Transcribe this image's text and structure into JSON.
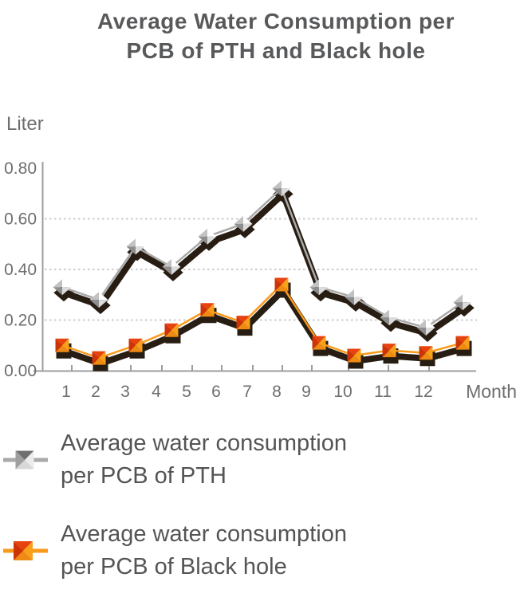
{
  "title": {
    "line1": "Average Water Consumption per",
    "line2": "PCB of PTH and Black hole"
  },
  "chart_data": {
    "type": "line",
    "x": [
      1,
      2,
      3,
      4,
      5,
      6,
      7,
      8,
      9,
      10,
      11,
      12
    ],
    "xlabel": "Month",
    "ylabel": "Liter",
    "ylim": [
      0,
      0.8
    ],
    "yticks": [
      "0.00",
      "0.20",
      "0.40",
      "0.60",
      "0.80"
    ],
    "grid": "horizontal dotted lines at 0.20, 0.40, 0.60",
    "legend_position": "bottom-left",
    "series": [
      {
        "name": "Average water consumption per PCB of PTH",
        "color": "#a9a9a9",
        "marker": "3d-gray-diamond",
        "values": [
          0.33,
          0.28,
          0.49,
          0.41,
          0.53,
          0.58,
          0.72,
          0.33,
          0.29,
          0.21,
          0.17,
          0.27
        ]
      },
      {
        "name": "Average water consumption per PCB of Black hole",
        "color": "#f89a1b",
        "marker": "3d-orange-square",
        "values": [
          0.1,
          0.05,
          0.1,
          0.16,
          0.24,
          0.19,
          0.34,
          0.11,
          0.06,
          0.08,
          0.07,
          0.11
        ]
      }
    ]
  },
  "legend": {
    "items": [
      {
        "line1": "Average water consumption",
        "line2": "per PCB of PTH"
      },
      {
        "line1": "Average water consumption",
        "line2": "per PCB of Black hole"
      }
    ]
  },
  "colors": {
    "background": "#ffffff",
    "title_text": "#58595b",
    "axis_text": "#6e6e6e",
    "axis_line": "#9d9d9d",
    "gridline": "#cbcbcb",
    "pth_series": "#a9a9a9",
    "blackhole_series": "#f89a1b",
    "line_shadow": "#281d12",
    "legend_text": "#545454"
  }
}
